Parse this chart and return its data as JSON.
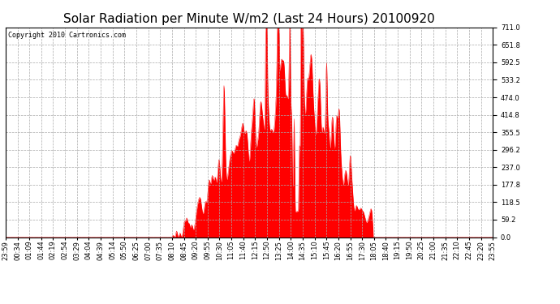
{
  "title": "Solar Radiation per Minute W/m2 (Last 24 Hours) 20100920",
  "copyright": "Copyright 2010 Cartronics.com",
  "fill_color": "#ff0000",
  "line_color": "#ff0000",
  "background_color": "#ffffff",
  "grid_color": "#aaaaaa",
  "grid_style": "--",
  "dashed_line_color": "#ff0000",
  "y_max": 711.0,
  "y_min": 0.0,
  "y_ticks": [
    0.0,
    59.2,
    118.5,
    177.8,
    237.0,
    296.2,
    355.5,
    414.8,
    474.0,
    533.2,
    592.5,
    651.8,
    711.0
  ],
  "x_labels": [
    "23:59",
    "00:34",
    "01:09",
    "01:44",
    "02:19",
    "02:54",
    "03:29",
    "04:04",
    "04:39",
    "05:14",
    "05:50",
    "06:25",
    "07:00",
    "07:35",
    "08:10",
    "08:45",
    "09:20",
    "09:55",
    "10:30",
    "11:05",
    "11:40",
    "12:15",
    "12:50",
    "13:25",
    "14:00",
    "14:35",
    "15:10",
    "15:45",
    "16:20",
    "16:55",
    "17:30",
    "18:05",
    "18:40",
    "19:15",
    "19:50",
    "20:25",
    "21:00",
    "21:35",
    "22:10",
    "22:45",
    "23:20",
    "23:55"
  ],
  "title_fontsize": 11,
  "copyright_fontsize": 6,
  "tick_fontsize": 6,
  "figwidth": 6.9,
  "figheight": 3.75,
  "dpi": 100
}
